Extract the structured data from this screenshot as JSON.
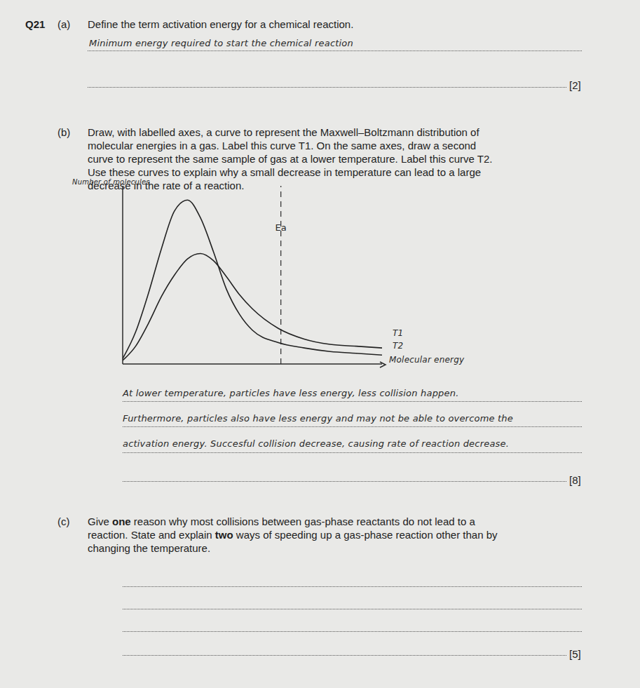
{
  "question": "Q21",
  "part_a": {
    "label": "(a)",
    "question": "Define the term activation energy for a chemical reaction.",
    "answer": "Minimum energy required to start the chemical reaction",
    "marks": "[2]"
  },
  "part_b": {
    "label": "(b)",
    "question_lines": [
      "Draw, with labelled axes, a curve to represent the Maxwell–Boltzmann distribution of",
      "molecular energies in a gas. Label this curve T1. On the same axes, draw a second",
      "curve to represent the same sample of gas at a lower temperature. Label this curve T2.",
      "Use these curves to explain why a small decrease in temperature can lead to a large",
      "decrease in the rate of a reaction."
    ],
    "answer_lines": [
      "At lower temperature, particles have less energy, less collision happen.",
      "Furthermore, particles also have less energy and may not be able to overcome the",
      "activation energy. Succesful collision decrease, causing rate of reaction decrease."
    ],
    "marks": "[8]"
  },
  "chart_data": {
    "type": "line",
    "x_label": "Molecular energy",
    "y_label": "Number of molecules",
    "x": [
      0,
      0.5,
      1,
      1.5,
      2,
      2.5,
      3,
      3.5,
      4,
      4.5,
      5,
      6,
      7,
      8,
      9,
      10
    ],
    "series": [
      {
        "name": "T1",
        "color": "#222222",
        "values": [
          0.2,
          1.0,
          2.3,
          3.8,
          5.0,
          5.9,
          6.2,
          5.8,
          4.9,
          3.9,
          3.1,
          2.0,
          1.4,
          1.1,
          1.0,
          0.9
        ]
      },
      {
        "name": "T2",
        "color": "#222222",
        "values": [
          0.3,
          1.8,
          4.0,
          6.5,
          8.6,
          9.2,
          8.2,
          6.3,
          4.2,
          2.8,
          1.9,
          1.2,
          0.9,
          0.7,
          0.6,
          0.5
        ]
      }
    ],
    "xlim": [
      0,
      10
    ],
    "ylim": [
      0,
      10
    ],
    "tick_labels": false,
    "annotations": [
      {
        "text": "Ea",
        "x": 6.1,
        "line_style": "dashed"
      }
    ]
  },
  "part_c": {
    "label": "(c)",
    "question_lines": [
      [
        {
          "text": "Give "
        },
        {
          "text": "one",
          "bold": true
        },
        {
          "text": " reason why most collisions between gas-phase reactants do not lead to a"
        }
      ],
      [
        {
          "text": "reaction. State and explain "
        },
        {
          "text": "two",
          "bold": true
        },
        {
          "text": " ways of speeding up a gas-phase reaction other than by"
        }
      ],
      [
        {
          "text": "changing the temperature."
        }
      ]
    ],
    "marks": "[5]"
  }
}
